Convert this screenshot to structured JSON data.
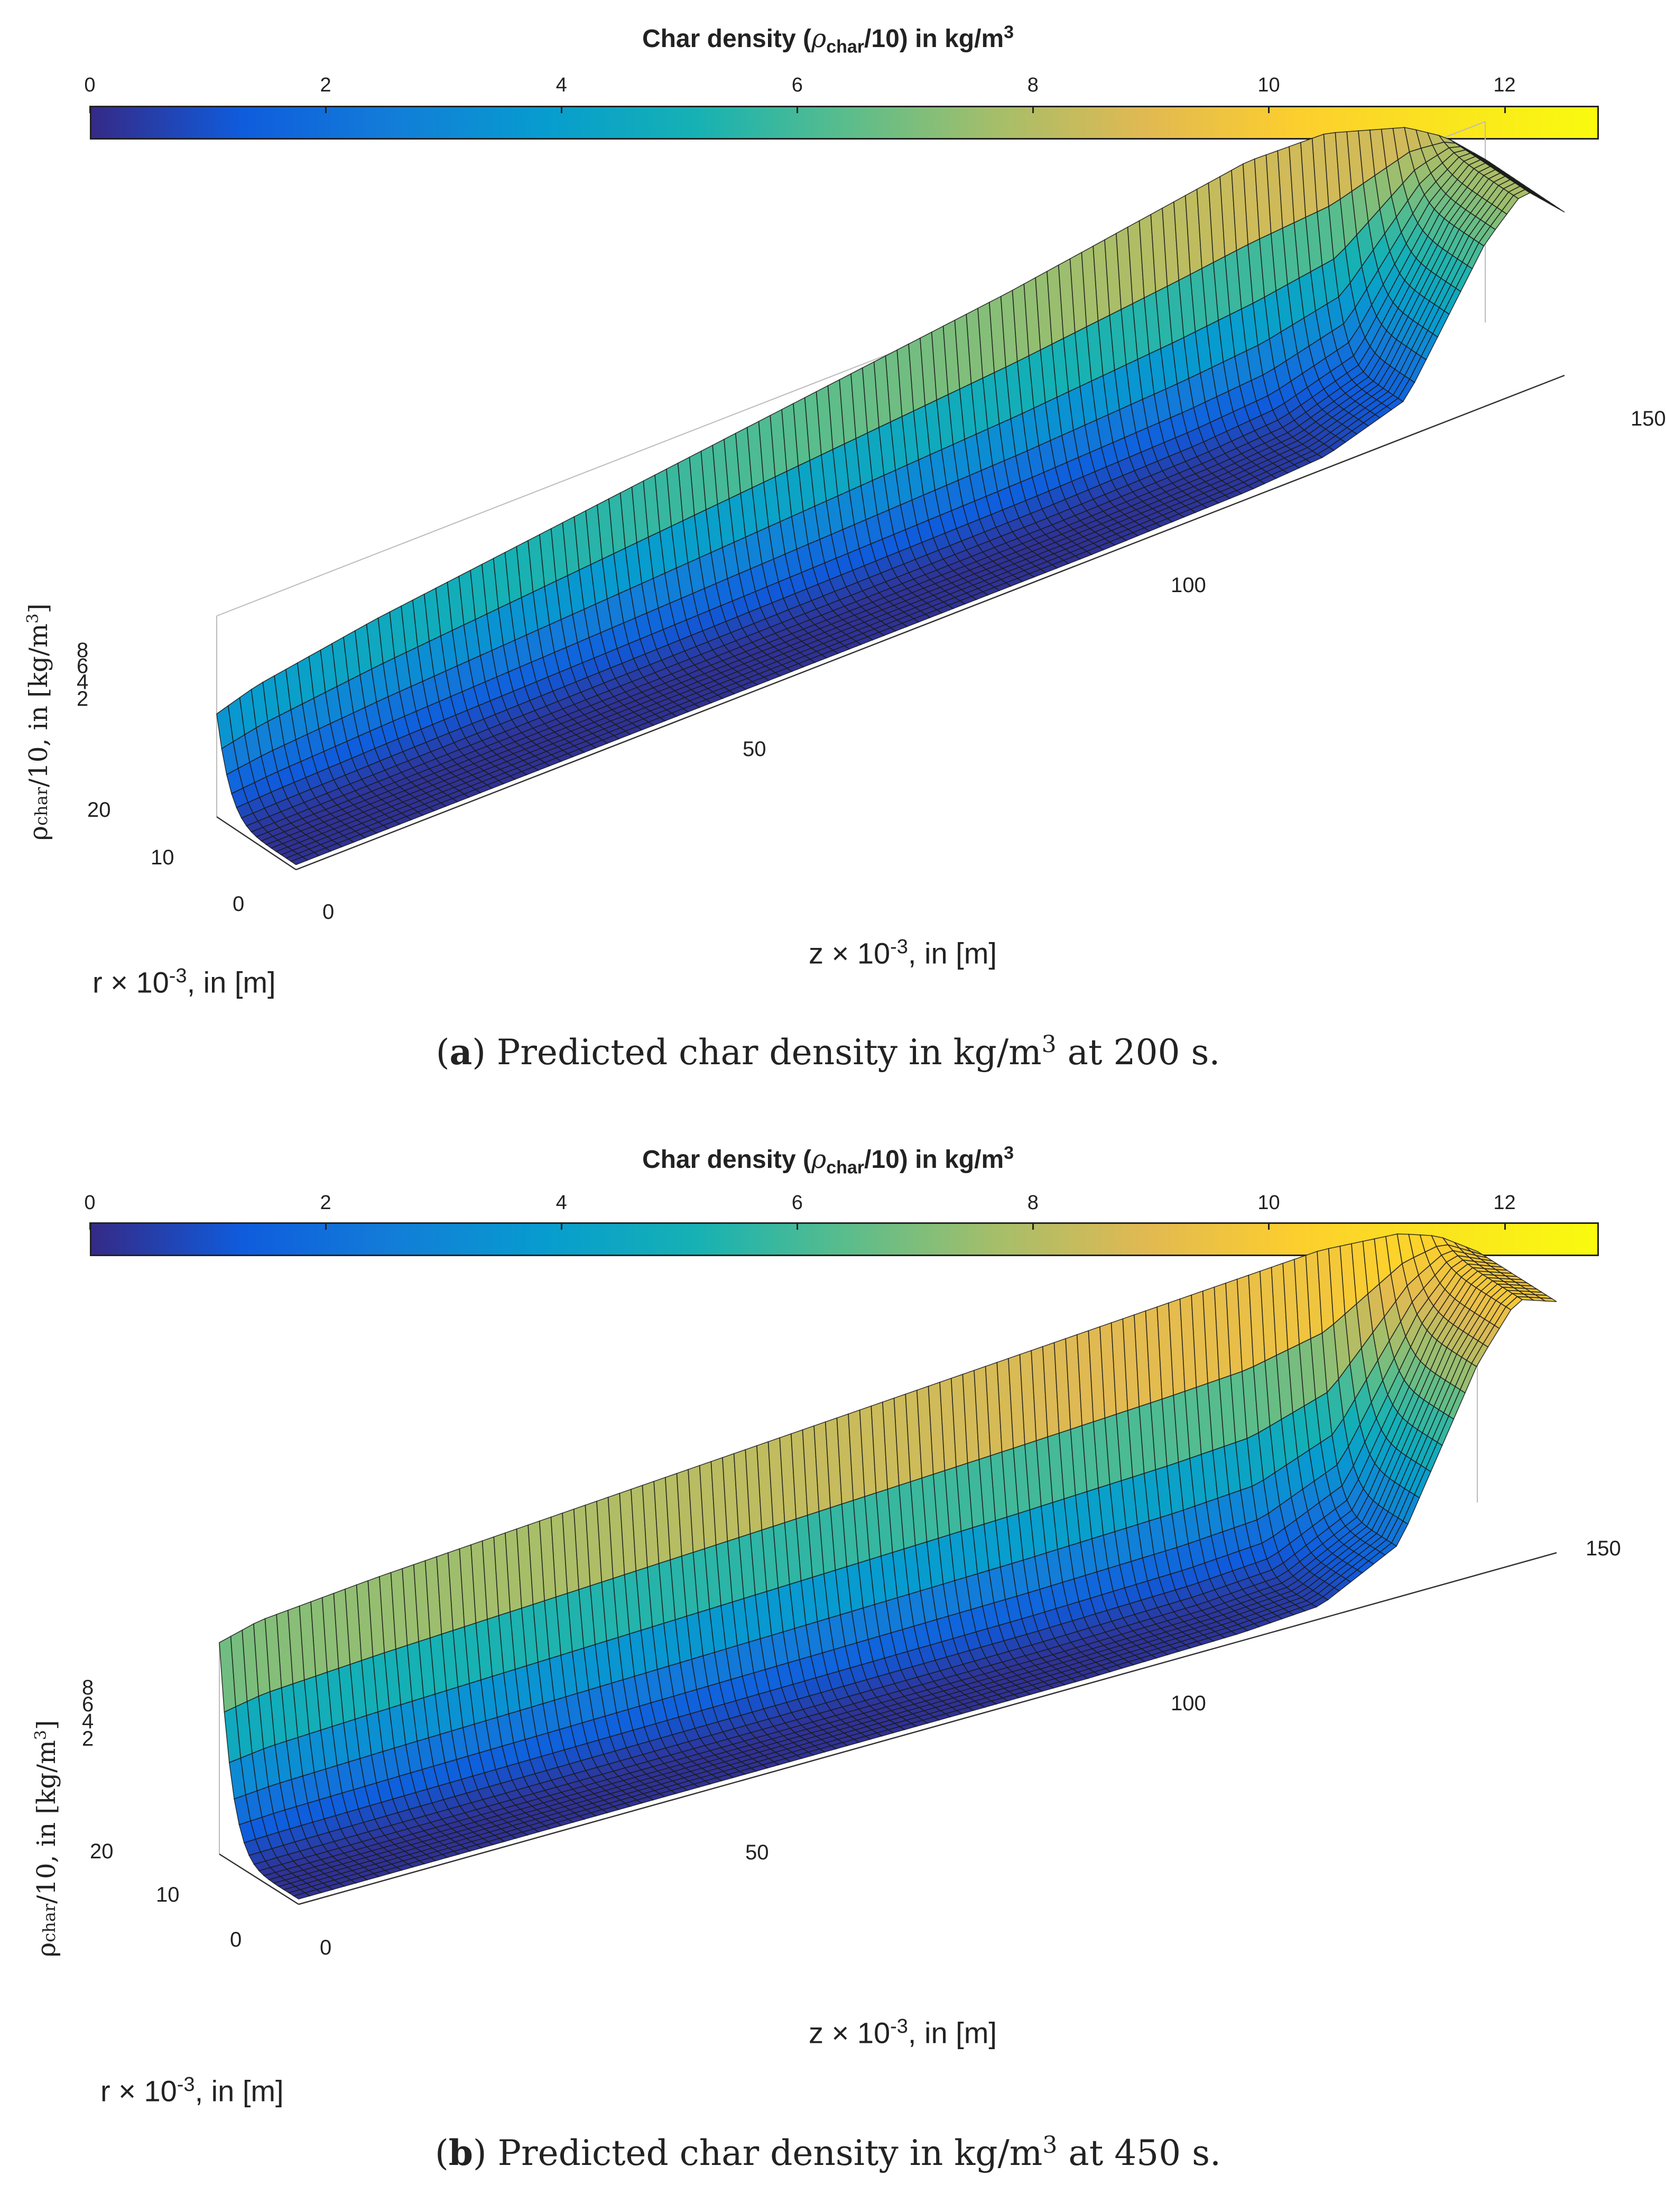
{
  "chart_data": [
    {
      "type": "surface",
      "title": "Char density (ρchar/10) in kg/m3",
      "colorbar": {
        "label": "Char density (ρchar/10) in kg/m3",
        "min": 0,
        "max": 12.8,
        "ticks": [
          "0",
          "2",
          "4",
          "6",
          "8",
          "10",
          "12"
        ],
        "colormap": "parula"
      },
      "xlabel": "z × 10-3, in [m]",
      "ylabel": "r × 10-3, in [m]",
      "zlabel": "ρchar/10, in [kg/m3]",
      "x_ticks": [
        "0",
        "50",
        "100",
        "150"
      ],
      "y_ticks": [
        "0",
        "10",
        "20"
      ],
      "z_ticks": [
        "2",
        "4",
        "6",
        "8"
      ],
      "xlim": [
        0,
        160
      ],
      "ylim": [
        0,
        25
      ],
      "zlim": [
        0,
        8
      ],
      "surface_profile": {
        "z": [
          0,
          5,
          20,
          40,
          60,
          80,
          100,
          120,
          130,
          140,
          150,
          155,
          160
        ],
        "outer_density": [
          4.1,
          4.6,
          5.4,
          6.2,
          7.0,
          7.8,
          8.6,
          9.6,
          10.1,
          10.0,
          9.0,
          8.0,
          6.5
        ],
        "center_density": [
          0.2,
          0.2,
          0.2,
          0.2,
          0.2,
          0.2,
          0.2,
          0.3,
          0.5,
          1.5,
          6.5,
          8.0,
          6.5
        ]
      },
      "caption": {
        "letter": "a",
        "text": ") Predicted char density in kg/m",
        "sup": "3",
        "tail": " at 200 s."
      }
    },
    {
      "type": "surface",
      "title": "Char density (ρchar/10) in kg/m3",
      "colorbar": {
        "label": "Char density (ρchar/10) in kg/m3",
        "min": 0,
        "max": 12.8,
        "ticks": [
          "0",
          "2",
          "4",
          "6",
          "8",
          "10",
          "12"
        ],
        "colormap": "parula"
      },
      "xlabel": "z × 10-3, in [m]",
      "ylabel": "r × 10-3, in [m]",
      "zlabel": "ρchar/10, in [kg/m3]",
      "x_ticks": [
        "0",
        "50",
        "100",
        "150"
      ],
      "y_ticks": [
        "0",
        "10",
        "20"
      ],
      "z_ticks": [
        "2",
        "4",
        "6",
        "8"
      ],
      "xlim": [
        0,
        160
      ],
      "ylim": [
        0,
        25
      ],
      "zlim": [
        0,
        8
      ],
      "surface_profile": {
        "z": [
          0,
          5,
          20,
          40,
          60,
          80,
          100,
          120,
          130,
          140,
          150,
          155,
          160
        ],
        "outer_density": [
          8.0,
          8.4,
          8.8,
          9.2,
          9.6,
          10.0,
          10.4,
          10.8,
          11.0,
          11.2,
          11.0,
          10.5,
          9.5
        ],
        "center_density": [
          0.2,
          0.2,
          0.2,
          0.2,
          0.2,
          0.2,
          0.2,
          0.3,
          0.5,
          2.0,
          8.0,
          10.0,
          9.5
        ]
      },
      "caption": {
        "letter": "b",
        "text": ") Predicted char density in kg/m",
        "sup": "3",
        "tail": " at 450 s."
      }
    }
  ]
}
